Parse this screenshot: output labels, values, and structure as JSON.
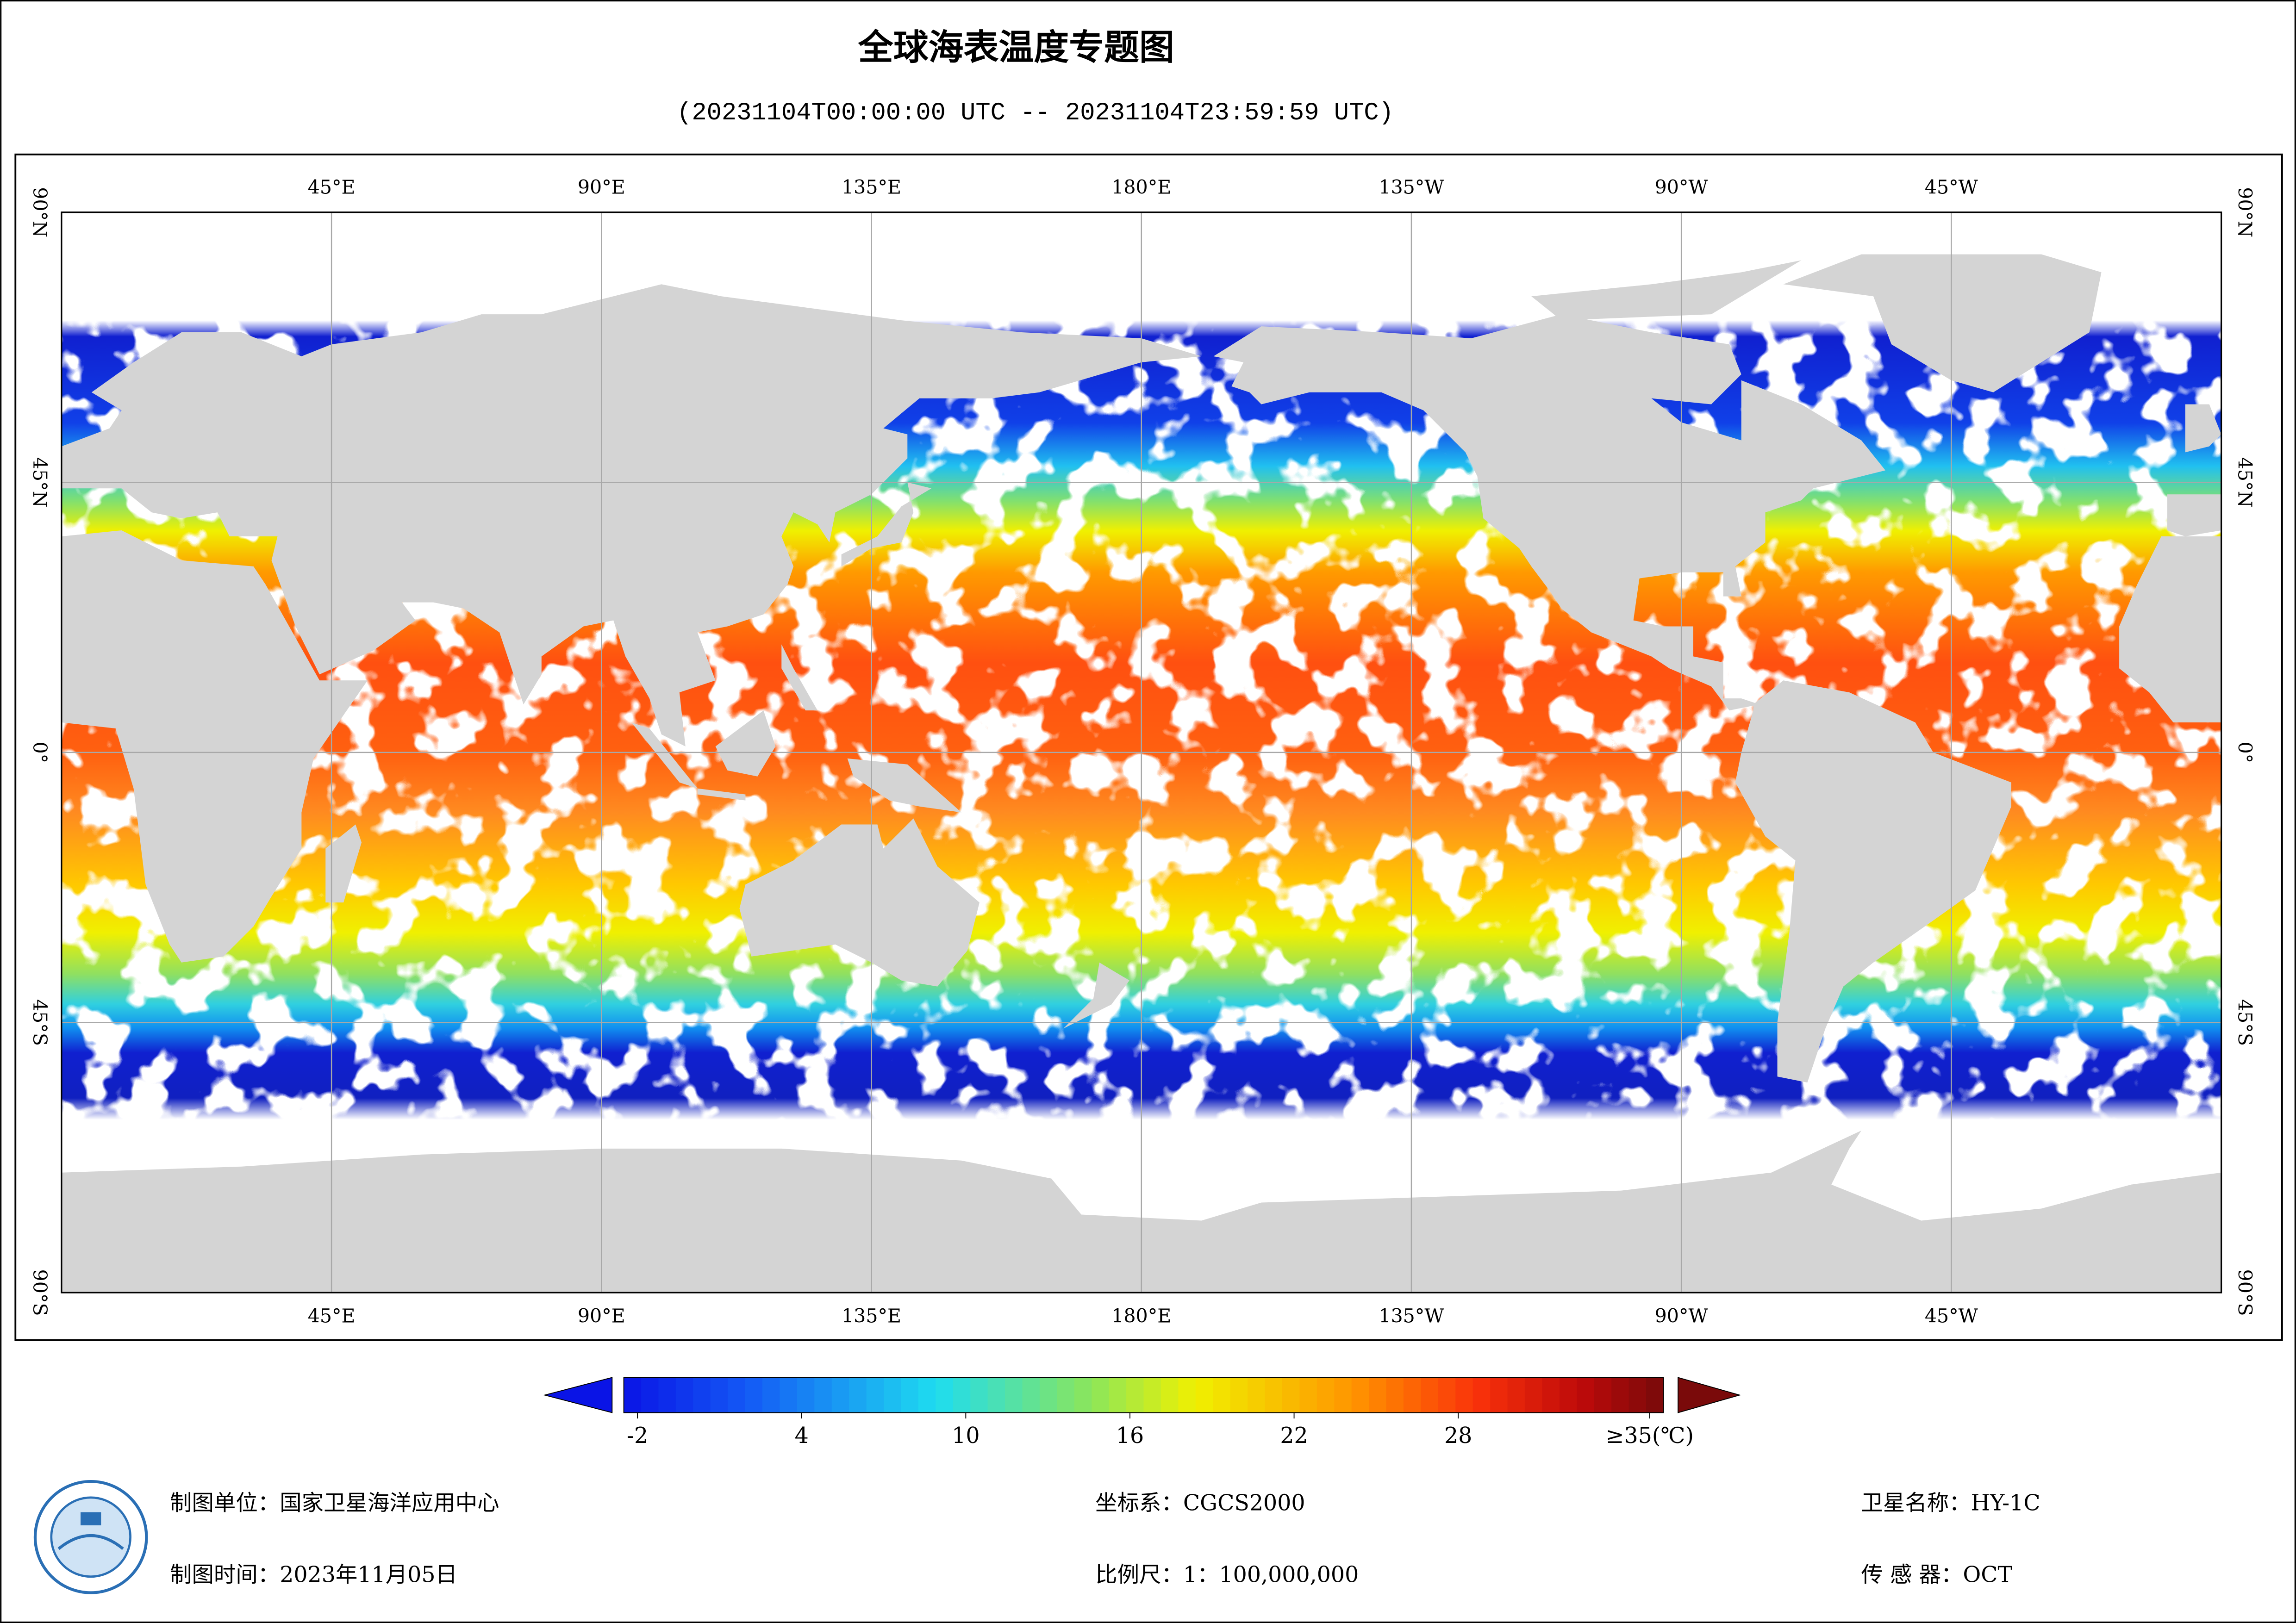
{
  "title": "全球海表温度专题图",
  "subtitle": "(20231104T00:00:00 UTC -- 20231104T23:59:59 UTC)",
  "map": {
    "xlim": [
      0,
      360
    ],
    "ylim": [
      -90,
      90
    ],
    "lon_ticks": [
      {
        "value": 45,
        "label": "45°E"
      },
      {
        "value": 90,
        "label": "90°E"
      },
      {
        "value": 135,
        "label": "135°E"
      },
      {
        "value": 180,
        "label": "180°E"
      },
      {
        "value": 225,
        "label": "135°W"
      },
      {
        "value": 270,
        "label": "90°W"
      },
      {
        "value": 315,
        "label": "45°W"
      }
    ],
    "lat_ticks": [
      {
        "value": 90,
        "label": "90°N"
      },
      {
        "value": 45,
        "label": "45°N"
      },
      {
        "value": 0,
        "label": "0°"
      },
      {
        "value": -45,
        "label": "45°S"
      },
      {
        "value": -90,
        "label": "90°S"
      }
    ]
  },
  "colorbar": {
    "range": [
      -2.5,
      35.5
    ],
    "ticks": [
      -2,
      4,
      10,
      16,
      22,
      28,
      {
        "value": 35,
        "label": "≥35(℃)"
      }
    ]
  },
  "footer": {
    "unit": "制图单位：国家卫星海洋应用中心",
    "date": "制图时间：2023年11月05日",
    "crs": "坐标系：CGCS2000",
    "scale": "比例尺：1：100,000,000",
    "satellite": "卫星名称：HY-1C",
    "sensor": "传 感 器：OCT"
  }
}
